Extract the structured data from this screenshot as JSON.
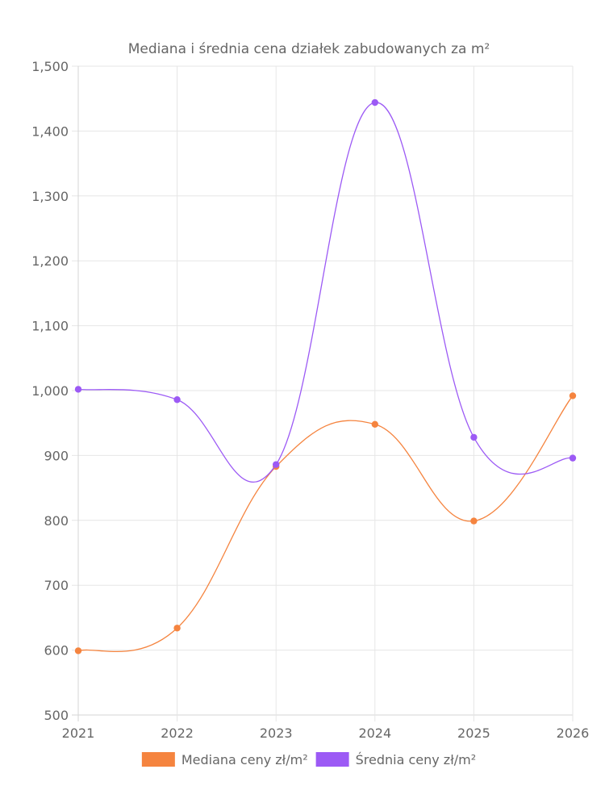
{
  "chart_data": {
    "type": "line",
    "title": "Mediana i średnia cena działek zabudowanych za m²",
    "xlabel": "",
    "ylabel": "",
    "x": [
      "2021",
      "2022",
      "2023",
      "2024",
      "2025",
      "2026"
    ],
    "ylim": [
      500,
      1500
    ],
    "y_ticks": [
      "1,500",
      "1,400",
      "1,300",
      "1,200",
      "1,100",
      "1,000",
      "900",
      "800",
      "700",
      "600",
      "500"
    ],
    "y_tick_values": [
      1500,
      1400,
      1300,
      1200,
      1100,
      1000,
      900,
      800,
      700,
      600,
      500
    ],
    "grid": true,
    "legend_position": "bottom",
    "series": [
      {
        "name": "Mediana ceny zł/m²",
        "color": "#f5843f",
        "values": [
          599,
          634,
          883,
          948,
          799,
          992
        ]
      },
      {
        "name": "Średnia ceny zł/m²",
        "color": "#9c5af5",
        "values": [
          1002,
          986,
          886,
          1444,
          928,
          896
        ]
      }
    ]
  }
}
